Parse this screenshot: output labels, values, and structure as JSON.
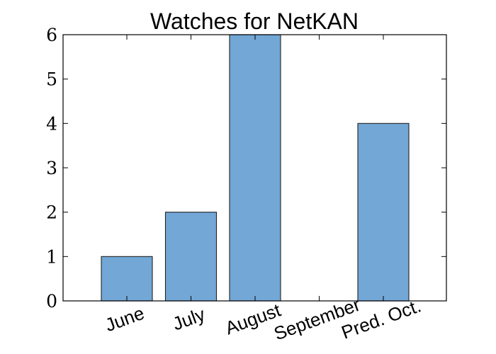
{
  "chart_data": {
    "type": "bar",
    "title": "Watches for NetKAN",
    "categories": [
      "June",
      "July",
      "August",
      "September",
      "Pred. Oct."
    ],
    "values": [
      1,
      2,
      6,
      0,
      4
    ],
    "ylim": [
      0,
      6
    ],
    "yticks": [
      "0",
      "1",
      "2",
      "3",
      "4",
      "5",
      "6"
    ],
    "xlabel": "",
    "ylabel": "",
    "grid": false,
    "legend": "none",
    "colors": {
      "bar_fill": "#72a7d6",
      "bar_stroke": "#222222",
      "axis": "#000000"
    }
  }
}
